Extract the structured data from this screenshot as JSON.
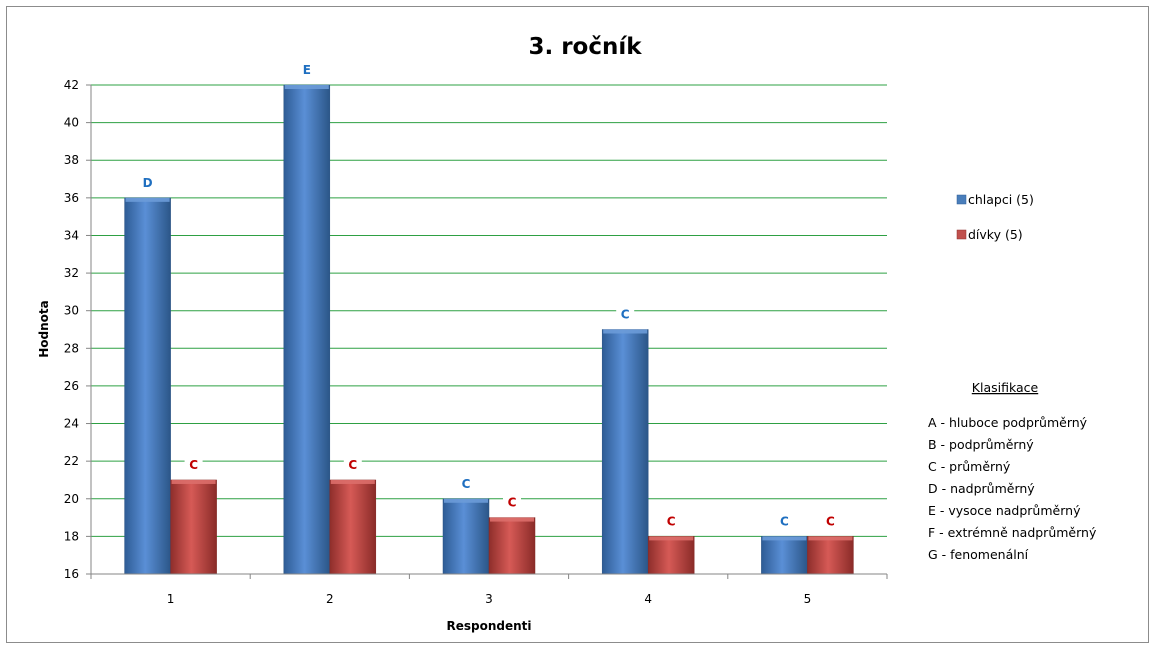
{
  "chart_data": {
    "type": "bar",
    "title": "3. ročník",
    "xlabel": "Respondenti",
    "ylabel": "Hodnota",
    "categories": [
      "1",
      "2",
      "3",
      "4",
      "5"
    ],
    "ylim": [
      16,
      42
    ],
    "ytick_step": 2,
    "grid": true,
    "legend_position": "right",
    "series": [
      {
        "name": "chlapci (5)",
        "color": "#4a7ebb",
        "values": [
          36,
          42,
          20,
          29,
          18
        ],
        "labels": [
          "D",
          "E",
          "C",
          "C",
          "C"
        ],
        "label_color": "#1f6fc0"
      },
      {
        "name": "dívky (5)",
        "color": "#c0504d",
        "values": [
          21,
          21,
          19,
          18,
          18
        ],
        "labels": [
          "C",
          "C",
          "C",
          "C",
          "C"
        ],
        "label_color": "#c00000"
      }
    ],
    "grid_color": "#2ea043"
  },
  "classification": {
    "title": "Klasifikace",
    "items": [
      "A - hluboce podprůměrný",
      "B - podprůměrný",
      "C - průměrný",
      "D - nadprůměrný",
      "E - vysoce nadprůměrný",
      "F - extrémně  nadprůměrný",
      "G - fenomenální"
    ]
  }
}
